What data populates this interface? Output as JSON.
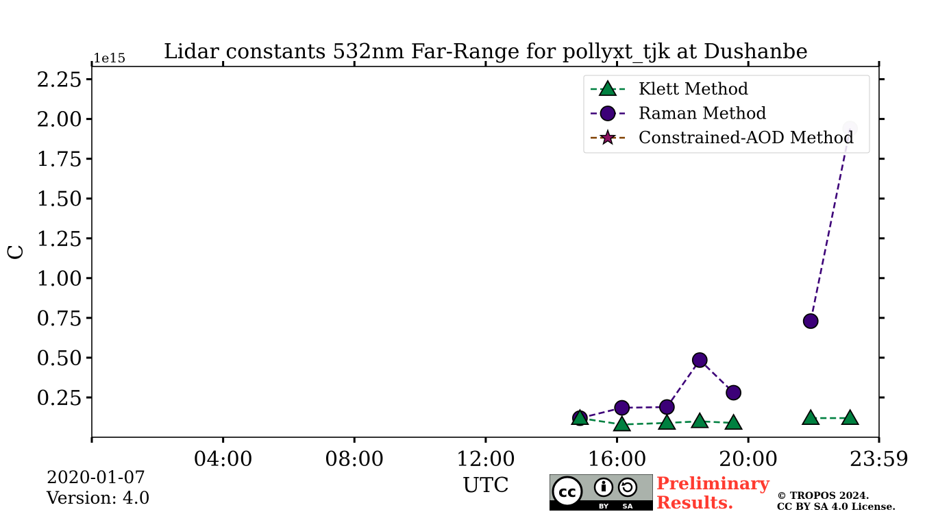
{
  "footer": {
    "date": "2020-01-07",
    "version": "Version: 4.0",
    "preliminary": "Preliminary",
    "results": "Results.",
    "copyright": "© TROPOS 2024.",
    "license": "CC BY SA 4.0 License.",
    "badge_cc": "cc",
    "badge_by": "BY",
    "badge_sa": "SA"
  },
  "colors": {
    "klett": "#008040",
    "raman": "#3c0078",
    "constrained": "#804000",
    "constrained_marker": "#8b1060",
    "prelim": "#ff3b30"
  },
  "chart_data": {
    "type": "line",
    "title": "Lidar constants 532nm Far-Range for pollyxt_tjk at Dushanbe",
    "xlabel": "UTC",
    "ylabel": "C",
    "y_multiplier_label": "1e15",
    "xlim": [
      0,
      23.983
    ],
    "ylim": [
      0,
      2.33
    ],
    "x_ticks": [
      0,
      4,
      8,
      12,
      16,
      20,
      23.983
    ],
    "x_tick_labels": [
      "",
      "04:00",
      "08:00",
      "12:00",
      "16:00",
      "20:00",
      "23:59"
    ],
    "y_ticks": [
      0.25,
      0.5,
      0.75,
      1.0,
      1.25,
      1.5,
      1.75,
      2.0,
      2.25
    ],
    "y_tick_labels": [
      "0.25",
      "0.50",
      "0.75",
      "1.00",
      "1.25",
      "1.50",
      "1.75",
      "2.00",
      "2.25"
    ],
    "legend_position": "top-right",
    "series": [
      {
        "name": "Klett Method",
        "marker": "triangle",
        "color_key": "klett",
        "points": [
          [
            14.87,
            0.12
          ],
          [
            16.15,
            0.08
          ],
          [
            17.52,
            0.09
          ],
          [
            18.52,
            0.1
          ],
          [
            19.55,
            0.09
          ],
          [
            21.9,
            0.12
          ],
          [
            23.1,
            0.12
          ]
        ],
        "segments": [
          [
            0,
            1,
            2,
            3,
            4
          ],
          [
            5,
            6
          ]
        ]
      },
      {
        "name": "Raman Method",
        "marker": "circle",
        "color_key": "raman",
        "points": [
          [
            14.87,
            0.12
          ],
          [
            16.15,
            0.185
          ],
          [
            17.52,
            0.19
          ],
          [
            18.52,
            0.485
          ],
          [
            19.55,
            0.28
          ],
          [
            21.9,
            0.73
          ],
          [
            23.1,
            1.94
          ]
        ],
        "segments": [
          [
            0,
            1,
            2,
            3,
            4
          ],
          [
            5,
            6
          ]
        ]
      },
      {
        "name": "Constrained-AOD Method",
        "marker": "star",
        "color_key": "constrained",
        "points": [],
        "segments": []
      }
    ]
  }
}
